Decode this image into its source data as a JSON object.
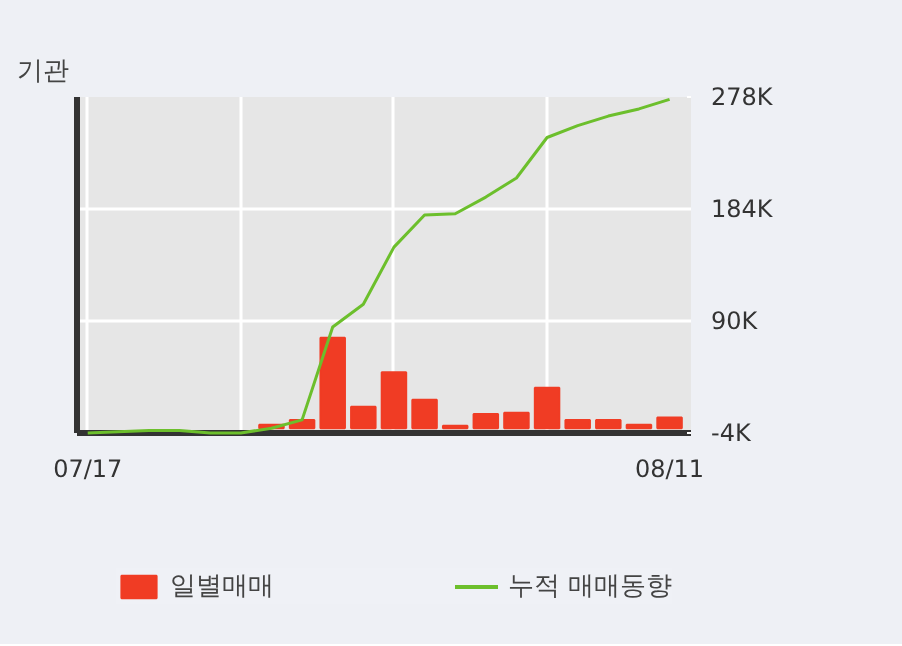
{
  "chart_data": {
    "type": "bar",
    "title": "기관",
    "categories": [
      "07/17",
      null,
      null,
      null,
      null,
      null,
      null,
      null,
      null,
      null,
      null,
      null,
      null,
      null,
      null,
      null,
      null,
      null,
      null,
      "08/11"
    ],
    "series": [
      {
        "name": "일별매매",
        "color": "#f03c24",
        "values": [
          null,
          null,
          null,
          null,
          null,
          null,
          3,
          7,
          76,
          18,
          47,
          24,
          2,
          12,
          13,
          34,
          7,
          7,
          3,
          9
        ]
      },
      {
        "name": "누적 매매동향",
        "type": "line",
        "color": "#6cbf2c",
        "values": [
          -4,
          -3,
          -2,
          -2,
          -4,
          -4,
          0,
          7,
          85,
          104,
          152,
          179,
          180,
          194,
          210,
          244,
          254,
          262,
          268,
          276
        ]
      }
    ],
    "ylim": [
      -4,
      278
    ],
    "yticks": [
      {
        "value": -4,
        "label": "-4K"
      },
      {
        "value": 90,
        "label": "90K"
      },
      {
        "value": 184,
        "label": "184K"
      },
      {
        "value": 278,
        "label": "278K"
      }
    ],
    "grid": true,
    "legend": "bottom",
    "marker": "none",
    "line_style": "solid"
  }
}
